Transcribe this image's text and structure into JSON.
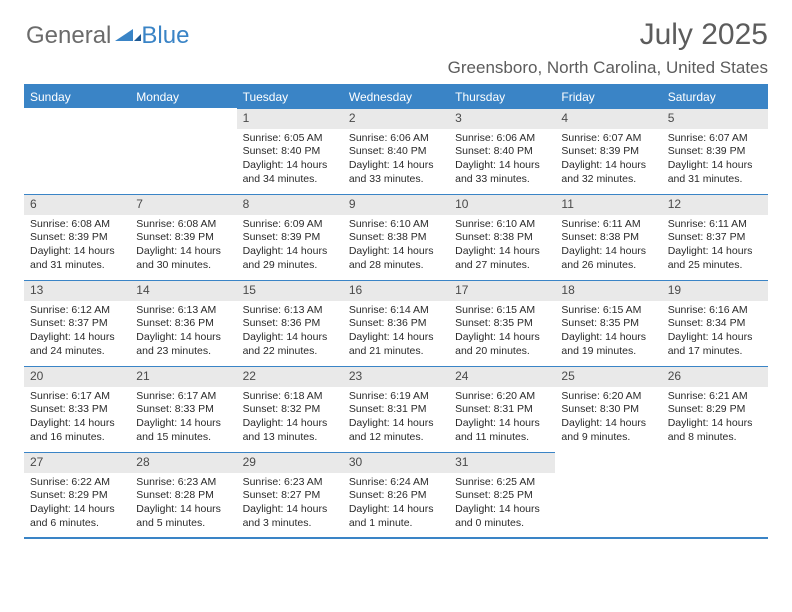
{
  "brand": {
    "part1": "General",
    "part2": "Blue"
  },
  "title": "July 2025",
  "subtitle": "Greensboro, North Carolina, United States",
  "colors": {
    "accent": "#3a84c6",
    "header_text": "#ffffff",
    "daynum_bg": "#e9e9e9",
    "body_text": "#2a2a2a",
    "muted_text": "#5c5c5c",
    "logo_gray": "#6b6b6b",
    "background": "#ffffff"
  },
  "weekdays": [
    "Sunday",
    "Monday",
    "Tuesday",
    "Wednesday",
    "Thursday",
    "Friday",
    "Saturday"
  ],
  "weeks": [
    [
      null,
      null,
      {
        "n": "1",
        "sr": "6:05 AM",
        "ss": "8:40 PM",
        "dl": "14 hours and 34 minutes."
      },
      {
        "n": "2",
        "sr": "6:06 AM",
        "ss": "8:40 PM",
        "dl": "14 hours and 33 minutes."
      },
      {
        "n": "3",
        "sr": "6:06 AM",
        "ss": "8:40 PM",
        "dl": "14 hours and 33 minutes."
      },
      {
        "n": "4",
        "sr": "6:07 AM",
        "ss": "8:39 PM",
        "dl": "14 hours and 32 minutes."
      },
      {
        "n": "5",
        "sr": "6:07 AM",
        "ss": "8:39 PM",
        "dl": "14 hours and 31 minutes."
      }
    ],
    [
      {
        "n": "6",
        "sr": "6:08 AM",
        "ss": "8:39 PM",
        "dl": "14 hours and 31 minutes."
      },
      {
        "n": "7",
        "sr": "6:08 AM",
        "ss": "8:39 PM",
        "dl": "14 hours and 30 minutes."
      },
      {
        "n": "8",
        "sr": "6:09 AM",
        "ss": "8:39 PM",
        "dl": "14 hours and 29 minutes."
      },
      {
        "n": "9",
        "sr": "6:10 AM",
        "ss": "8:38 PM",
        "dl": "14 hours and 28 minutes."
      },
      {
        "n": "10",
        "sr": "6:10 AM",
        "ss": "8:38 PM",
        "dl": "14 hours and 27 minutes."
      },
      {
        "n": "11",
        "sr": "6:11 AM",
        "ss": "8:38 PM",
        "dl": "14 hours and 26 minutes."
      },
      {
        "n": "12",
        "sr": "6:11 AM",
        "ss": "8:37 PM",
        "dl": "14 hours and 25 minutes."
      }
    ],
    [
      {
        "n": "13",
        "sr": "6:12 AM",
        "ss": "8:37 PM",
        "dl": "14 hours and 24 minutes."
      },
      {
        "n": "14",
        "sr": "6:13 AM",
        "ss": "8:36 PM",
        "dl": "14 hours and 23 minutes."
      },
      {
        "n": "15",
        "sr": "6:13 AM",
        "ss": "8:36 PM",
        "dl": "14 hours and 22 minutes."
      },
      {
        "n": "16",
        "sr": "6:14 AM",
        "ss": "8:36 PM",
        "dl": "14 hours and 21 minutes."
      },
      {
        "n": "17",
        "sr": "6:15 AM",
        "ss": "8:35 PM",
        "dl": "14 hours and 20 minutes."
      },
      {
        "n": "18",
        "sr": "6:15 AM",
        "ss": "8:35 PM",
        "dl": "14 hours and 19 minutes."
      },
      {
        "n": "19",
        "sr": "6:16 AM",
        "ss": "8:34 PM",
        "dl": "14 hours and 17 minutes."
      }
    ],
    [
      {
        "n": "20",
        "sr": "6:17 AM",
        "ss": "8:33 PM",
        "dl": "14 hours and 16 minutes."
      },
      {
        "n": "21",
        "sr": "6:17 AM",
        "ss": "8:33 PM",
        "dl": "14 hours and 15 minutes."
      },
      {
        "n": "22",
        "sr": "6:18 AM",
        "ss": "8:32 PM",
        "dl": "14 hours and 13 minutes."
      },
      {
        "n": "23",
        "sr": "6:19 AM",
        "ss": "8:31 PM",
        "dl": "14 hours and 12 minutes."
      },
      {
        "n": "24",
        "sr": "6:20 AM",
        "ss": "8:31 PM",
        "dl": "14 hours and 11 minutes."
      },
      {
        "n": "25",
        "sr": "6:20 AM",
        "ss": "8:30 PM",
        "dl": "14 hours and 9 minutes."
      },
      {
        "n": "26",
        "sr": "6:21 AM",
        "ss": "8:29 PM",
        "dl": "14 hours and 8 minutes."
      }
    ],
    [
      {
        "n": "27",
        "sr": "6:22 AM",
        "ss": "8:29 PM",
        "dl": "14 hours and 6 minutes."
      },
      {
        "n": "28",
        "sr": "6:23 AM",
        "ss": "8:28 PM",
        "dl": "14 hours and 5 minutes."
      },
      {
        "n": "29",
        "sr": "6:23 AM",
        "ss": "8:27 PM",
        "dl": "14 hours and 3 minutes."
      },
      {
        "n": "30",
        "sr": "6:24 AM",
        "ss": "8:26 PM",
        "dl": "14 hours and 1 minute."
      },
      {
        "n": "31",
        "sr": "6:25 AM",
        "ss": "8:25 PM",
        "dl": "14 hours and 0 minutes."
      },
      null,
      null
    ]
  ],
  "labels": {
    "sunrise": "Sunrise:",
    "sunset": "Sunset:",
    "daylight": "Daylight:"
  }
}
